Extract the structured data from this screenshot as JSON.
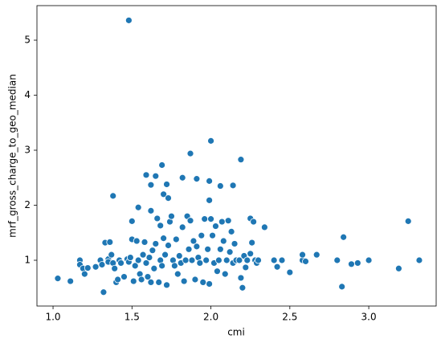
{
  "chart_data": {
    "type": "scatter",
    "x_label": "cmi",
    "y_label": "mrf_gross_charge_to_geo_median",
    "color": "#1f77b4",
    "xlim": [
      0.898,
      3.427
    ],
    "ylim": [
      0.168,
      5.628
    ],
    "xticks": [
      {
        "value": 1.0,
        "label": "1.0"
      },
      {
        "value": 1.5,
        "label": "1.5"
      },
      {
        "value": 2.0,
        "label": "2.0"
      },
      {
        "value": 2.5,
        "label": "2.5"
      },
      {
        "value": 3.0,
        "label": "3.0"
      }
    ],
    "yticks": [
      1,
      2,
      3,
      4,
      5
    ],
    "x": [
      1.48,
      2.0,
      1.87,
      2.19,
      1.69,
      1.59,
      1.65,
      1.82,
      1.91,
      1.99,
      1.72,
      1.62,
      2.14,
      2.06,
      1.7,
      1.38,
      1.73,
      1.99,
      1.54,
      1.62,
      2.25,
      1.03,
      1.11,
      1.17,
      1.17,
      1.19,
      1.2,
      1.22,
      1.27,
      1.3,
      1.31,
      1.32,
      1.33,
      1.35,
      1.35,
      1.36,
      1.37,
      1.38,
      1.39,
      1.4,
      1.41,
      1.42,
      1.43,
      1.45,
      1.47,
      1.48,
      1.49,
      1.5,
      1.5,
      1.51,
      1.52,
      1.53,
      1.54,
      1.55,
      1.56,
      1.57,
      1.58,
      1.59,
      1.6,
      1.61,
      1.62,
      1.63,
      1.64,
      1.65,
      1.66,
      1.67,
      1.68,
      1.68,
      1.69,
      1.7,
      1.71,
      1.72,
      1.73,
      1.74,
      1.75,
      1.76,
      1.77,
      1.78,
      1.79,
      1.8,
      1.81,
      1.82,
      1.83,
      1.84,
      1.85,
      1.86,
      1.87,
      1.88,
      1.89,
      1.9,
      1.91,
      1.92,
      1.93,
      1.94,
      1.95,
      1.96,
      1.97,
      1.98,
      1.99,
      2.0,
      2.01,
      2.02,
      2.03,
      2.04,
      2.05,
      2.06,
      2.07,
      2.08,
      2.09,
      2.1,
      2.11,
      2.12,
      2.13,
      2.14,
      2.15,
      2.16,
      2.18,
      2.19,
      2.2,
      2.21,
      2.22,
      2.23,
      2.25,
      2.26,
      2.27,
      2.28,
      2.29,
      2.3,
      2.34,
      2.4,
      2.42,
      2.45,
      2.5,
      2.58,
      2.58,
      2.6,
      2.67,
      2.8,
      2.83,
      2.84,
      2.89,
      2.93,
      3.0,
      3.19,
      3.25,
      3.32
    ],
    "values": [
      5.36,
      3.17,
      2.94,
      2.83,
      2.73,
      2.55,
      2.53,
      2.5,
      2.48,
      2.44,
      2.38,
      2.37,
      2.36,
      2.35,
      2.2,
      2.17,
      2.13,
      2.09,
      1.96,
      1.9,
      1.76,
      0.67,
      0.62,
      1.0,
      0.92,
      0.85,
      0.75,
      0.86,
      0.88,
      1.0,
      0.92,
      0.42,
      1.32,
      1.02,
      0.97,
      1.33,
      1.1,
      0.95,
      0.85,
      0.6,
      0.65,
      1.0,
      0.95,
      0.7,
      1.02,
      0.97,
      1.05,
      1.71,
      1.38,
      0.62,
      0.9,
      1.35,
      1.0,
      0.75,
      0.65,
      1.1,
      1.33,
      0.95,
      0.7,
      1.05,
      0.6,
      1.18,
      0.85,
      1.3,
      1.76,
      0.6,
      1.63,
      1.0,
      0.9,
      1.4,
      1.1,
      0.55,
      1.27,
      1.7,
      1.8,
      1.0,
      0.9,
      1.38,
      0.75,
      1.08,
      0.95,
      1.6,
      0.62,
      1.0,
      1.8,
      1.2,
      1.72,
      1.0,
      1.35,
      0.65,
      1.25,
      1.05,
      0.95,
      1.45,
      0.6,
      1.75,
      1.0,
      1.2,
      0.57,
      1.75,
      1.45,
      0.95,
      1.62,
      0.8,
      1.0,
      1.2,
      1.7,
      1.35,
      0.75,
      1.0,
      1.72,
      1.15,
      1.52,
      0.95,
      1.3,
      1.0,
      1.0,
      0.68,
      0.5,
      1.08,
      0.87,
      1.0,
      1.12,
      1.32,
      1.7,
      1.0,
      0.95,
      1.0,
      1.6,
      1.0,
      0.88,
      1.0,
      0.78,
      1.0,
      1.1,
      0.98,
      1.1,
      1.0,
      0.52,
      1.42,
      0.93,
      0.95,
      1.0,
      0.85,
      1.71,
      1.0
    ]
  }
}
